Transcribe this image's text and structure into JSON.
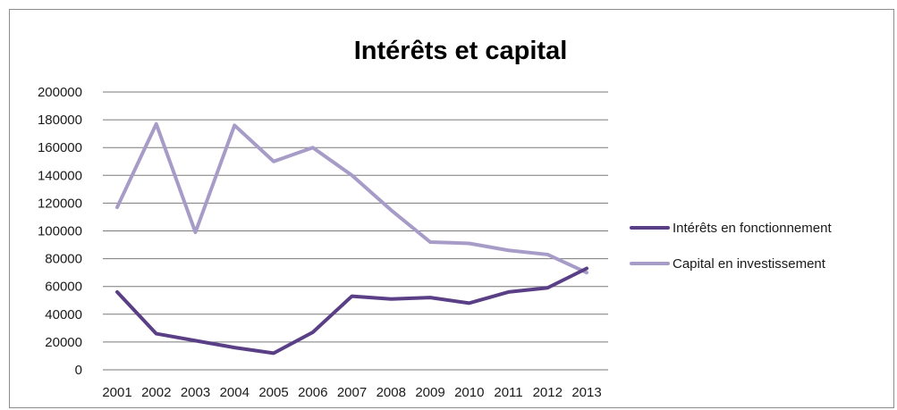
{
  "chart_data": {
    "type": "line",
    "title": "Intérêts et capital",
    "xlabel": "",
    "ylabel": "",
    "categories": [
      "2001",
      "2002",
      "2003",
      "2004",
      "2005",
      "2006",
      "2007",
      "2008",
      "2009",
      "2010",
      "2011",
      "2012",
      "2013"
    ],
    "ylim": [
      0,
      200000
    ],
    "yticks": [
      "0",
      "20000",
      "40000",
      "60000",
      "80000",
      "100000",
      "120000",
      "140000",
      "160000",
      "180000",
      "200000"
    ],
    "grid": true,
    "legend_position": "right",
    "series": [
      {
        "name": "Intérêts en fonctionnement",
        "color": "#5a3f87",
        "values": [
          56000,
          26000,
          21000,
          16000,
          12000,
          27000,
          53000,
          51000,
          52000,
          48000,
          56000,
          59000,
          73000
        ]
      },
      {
        "name": "Capital en investissement",
        "color": "#a79bc8",
        "values": [
          117000,
          177000,
          99000,
          176000,
          150000,
          160000,
          140000,
          115000,
          92000,
          91000,
          86000,
          83000,
          70000
        ]
      }
    ]
  }
}
